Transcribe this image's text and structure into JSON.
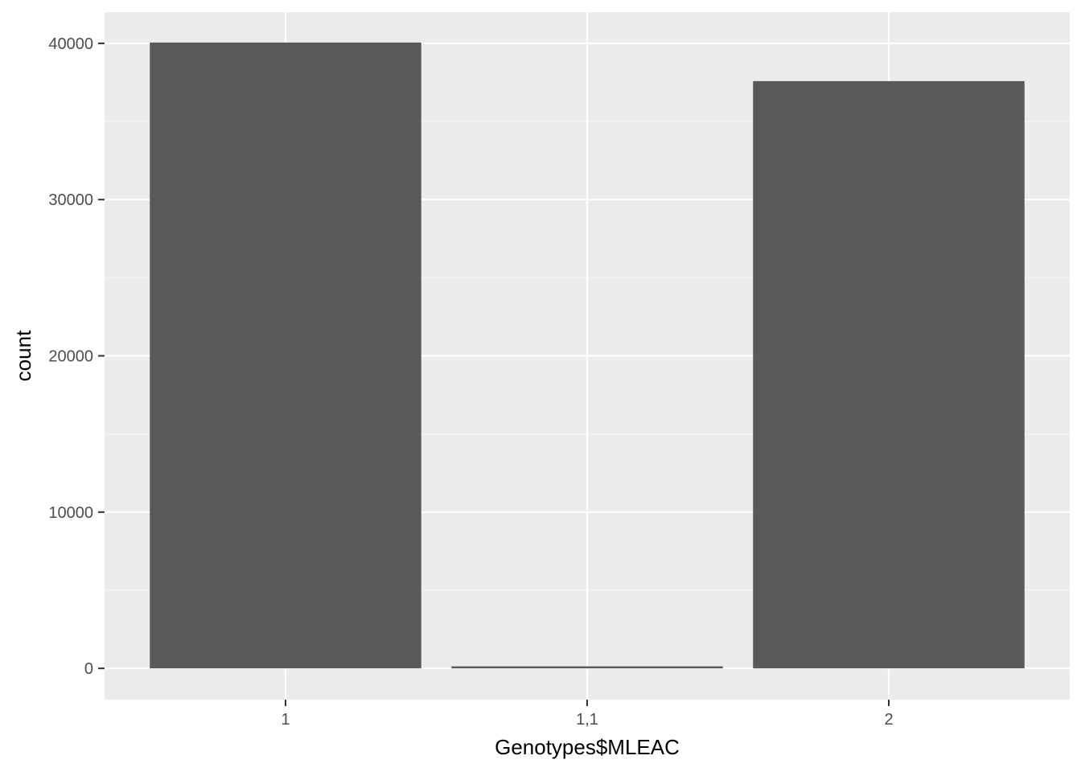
{
  "chart_data": {
    "type": "bar",
    "categories": [
      "1",
      "1,1",
      "2"
    ],
    "values": [
      40050,
      130,
      37580
    ],
    "xlabel": "Genotypes$MLEAC",
    "ylabel": "count",
    "ylim": [
      -2000,
      42000
    ],
    "yticks": [
      0,
      10000,
      20000,
      30000,
      40000
    ],
    "ytick_labels": [
      "0",
      "10000",
      "20000",
      "30000",
      "40000"
    ],
    "grid": true,
    "legend": "none",
    "colors": {
      "panel_background": "#ebebeb",
      "grid_major": "#ffffff",
      "grid_minor": "#f5f5f5",
      "bar_fill": "#595959",
      "tick_mark": "#333333"
    }
  }
}
